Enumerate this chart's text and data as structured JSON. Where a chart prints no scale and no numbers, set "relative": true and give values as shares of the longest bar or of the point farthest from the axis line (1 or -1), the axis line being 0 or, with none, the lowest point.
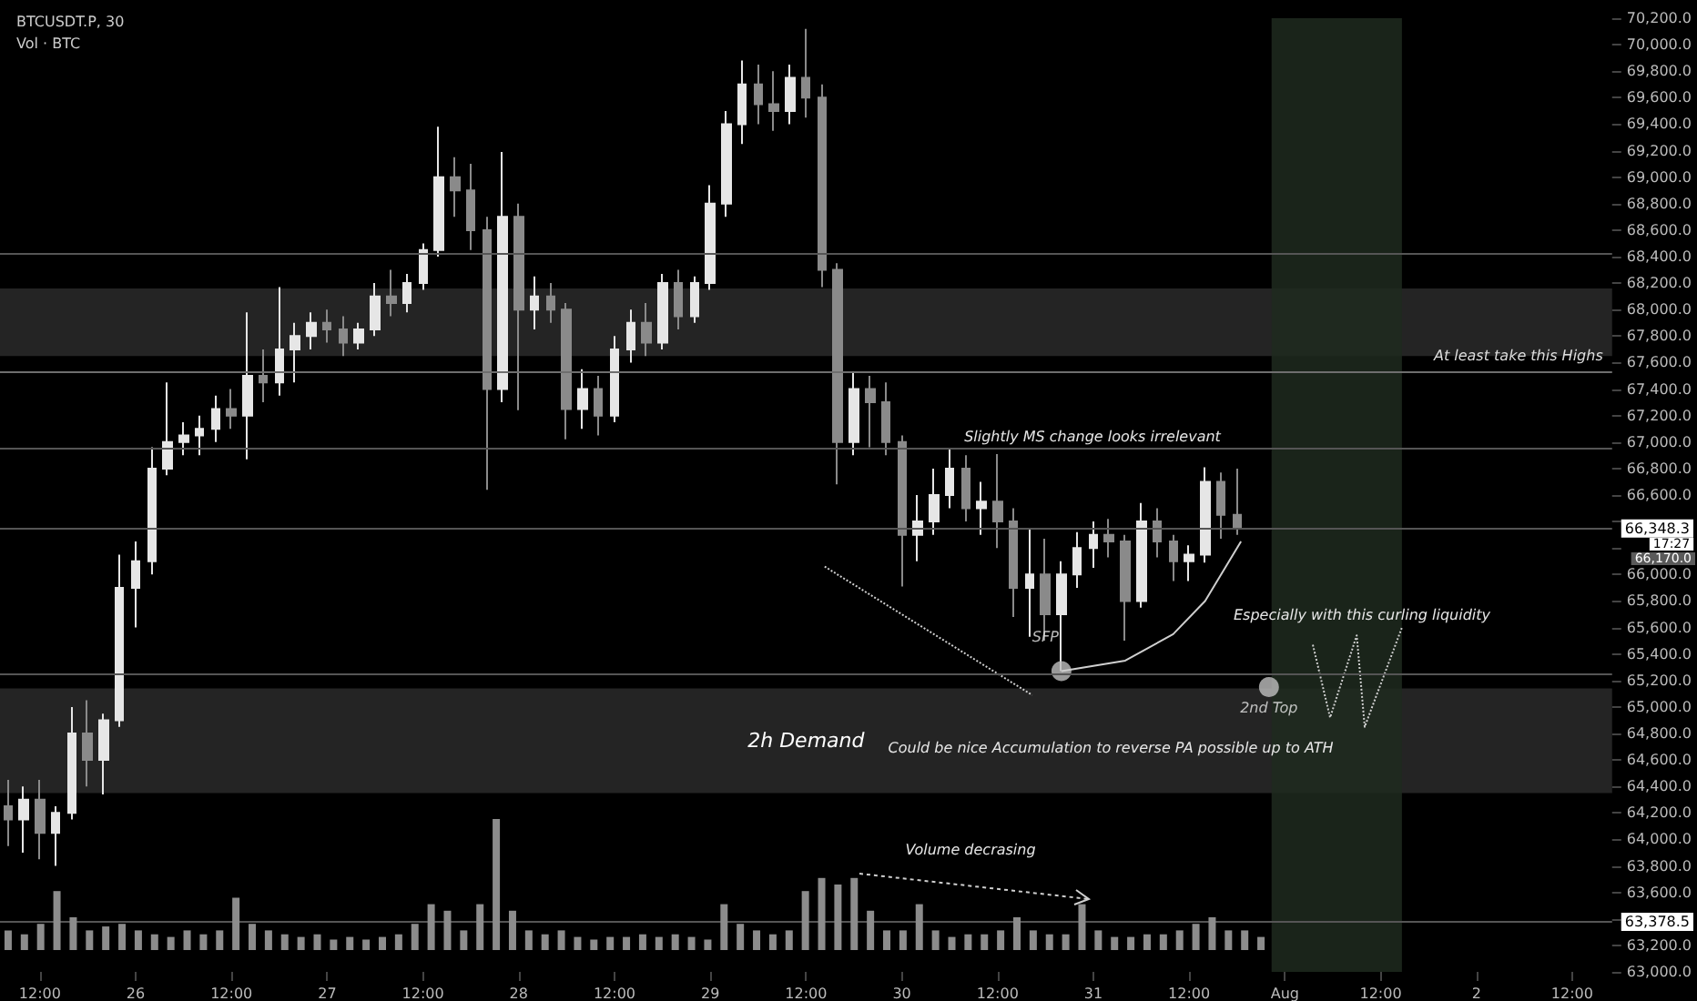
{
  "chart_data": [
    {
      "type": "candlestick",
      "title": "BTCUSDT.P, 30",
      "xlim": [
        "--07-25T07:00",
        "--08-02T17:00"
      ],
      "xticks": [
        {
          "value": "--07-25T12:00",
          "label": "12:00"
        },
        {
          "value": "--07-26T00:00",
          "label": "26"
        },
        {
          "value": "--07-26T12:00",
          "label": "12:00"
        },
        {
          "value": "--07-27T00:00",
          "label": "27"
        },
        {
          "value": "--07-27T12:00",
          "label": "12:00"
        },
        {
          "value": "--07-28T00:00",
          "label": "28"
        },
        {
          "value": "--07-28T12:00",
          "label": "12:00"
        },
        {
          "value": "--07-29T00:00",
          "label": "29"
        },
        {
          "value": "--07-29T12:00",
          "label": "12:00"
        },
        {
          "value": "--07-30T00:00",
          "label": "30"
        },
        {
          "value": "--07-30T12:00",
          "label": "12:00"
        },
        {
          "value": "--07-31T00:00",
          "label": "31"
        },
        {
          "value": "--07-31T12:00",
          "label": "12:00"
        },
        {
          "value": "--08-01T00:00",
          "label": "Aug"
        },
        {
          "value": "--08-01T12:00",
          "label": "12:00"
        },
        {
          "value": "--08-02T00:00",
          "label": "2"
        },
        {
          "value": "--08-02T12:00",
          "label": "12:00"
        }
      ],
      "ylim": [
        63000,
        70200
      ],
      "yticks": [
        {
          "value": 63000,
          "label": "63,000.0"
        },
        {
          "value": 63200,
          "label": "63,200.0"
        },
        {
          "value": 63400,
          "label": null
        },
        {
          "value": 63600,
          "label": "63,600.0"
        },
        {
          "value": 63800,
          "label": "63,800.0"
        },
        {
          "value": 64000,
          "label": "64,000.0"
        },
        {
          "value": 64200,
          "label": "64,200.0"
        },
        {
          "value": 64400,
          "label": "64,400.0"
        },
        {
          "value": 64600,
          "label": "64,600.0"
        },
        {
          "value": 64800,
          "label": "64,800.0"
        },
        {
          "value": 65000,
          "label": "65,000.0"
        },
        {
          "value": 65200,
          "label": "65,200.0"
        },
        {
          "value": 65400,
          "label": "65,400.0"
        },
        {
          "value": 65600,
          "label": "65,600.0"
        },
        {
          "value": 65800,
          "label": "65,800.0"
        },
        {
          "value": 66000,
          "label": "66,000.0"
        },
        {
          "value": 66200,
          "label": null
        },
        {
          "value": 66400,
          "label": null
        },
        {
          "value": 66600,
          "label": "66,600.0"
        },
        {
          "value": 66800,
          "label": "66,800.0"
        },
        {
          "value": 67000,
          "label": "67,000.0"
        },
        {
          "value": 67200,
          "label": "67,200.0"
        },
        {
          "value": 67400,
          "label": "67,400.0"
        },
        {
          "value": 67600,
          "label": "67,600.0"
        },
        {
          "value": 67800,
          "label": "67,800.0"
        },
        {
          "value": 68000,
          "label": "68,000.0"
        },
        {
          "value": 68200,
          "label": "68,200.0"
        },
        {
          "value": 68400,
          "label": "68,400.0"
        },
        {
          "value": 68600,
          "label": "68,600.0"
        },
        {
          "value": 68800,
          "label": "68,800.0"
        },
        {
          "value": 69000,
          "label": "69,000.0"
        },
        {
          "value": 69200,
          "label": "69,200.0"
        },
        {
          "value": 69400,
          "label": "69,400.0"
        },
        {
          "value": 69600,
          "label": "69,600.0"
        },
        {
          "value": 69800,
          "label": "69,800.0"
        },
        {
          "value": 70000,
          "label": "70,000.0"
        },
        {
          "value": 70200,
          "label": "70,200.0"
        }
      ],
      "series": [
        {
          "colors": [
            "#8a8a8a",
            "#e6e6e6",
            "#8a8a8a",
            "#e6e6e6",
            "#e6e6e6",
            "#8a8a8a",
            "#e6e6e6",
            "#e6e6e6",
            "#e6e6e6",
            "#e6e6e6",
            "#e6e6e6",
            "#e6e6e6",
            "#e6e6e6",
            "#e6e6e6",
            "#8a8a8a",
            "#e6e6e6",
            "#8a8a8a",
            "#e6e6e6",
            "#e6e6e6",
            "#e6e6e6",
            "#8a8a8a",
            "#8a8a8a",
            "#e6e6e6",
            "#e6e6e6",
            "#8a8a8a",
            "#e6e6e6",
            "#e6e6e6",
            "#e6e6e6",
            "#8a8a8a",
            "#8a8a8a",
            "#8a8a8a",
            "#e6e6e6",
            "#8a8a8a",
            "#e6e6e6",
            "#8a8a8a",
            "#8a8a8a",
            "#e6e6e6",
            "#8a8a8a",
            "#e6e6e6",
            "#e6e6e6",
            "#8a8a8a",
            "#e6e6e6",
            "#8a8a8a",
            "#e6e6e6",
            "#e6e6e6",
            "#e6e6e6",
            "#e6e6e6",
            "#8a8a8a",
            "#8a8a8a",
            "#e6e6e6",
            "#8a8a8a",
            "#8a8a8a",
            "#8a8a8a",
            "#e6e6e6",
            "#8a8a8a",
            "#8a8a8a",
            "#8a8a8a",
            "#e6e6e6",
            "#e6e6e6",
            "#e6e6e6",
            "#8a8a8a",
            "#e6e6e6",
            "#8a8a8a",
            "#8a8a8a",
            "#e6e6e6",
            "#8a8a8a",
            "#e6e6e6",
            "#e6e6e6",
            "#e6e6e6",
            "#8a8a8a",
            "#8a8a8a",
            "#e6e6e6",
            "#8a8a8a",
            "#8a8a8a",
            "#e6e6e6",
            "#e6e6e6",
            "#8a8a8a",
            "#8a8a8a"
          ],
          "x": [
            "--07-25T08:00",
            "--07-25T10:00",
            "--07-25T12:00",
            "--07-25T14:00",
            "--07-25T16:00",
            "--07-25T18:00",
            "--07-25T20:00",
            "--07-25T22:00",
            "--07-26T00:00",
            "--07-26T02:00",
            "--07-26T04:00",
            "--07-26T06:00",
            "--07-26T08:00",
            "--07-26T10:00",
            "--07-26T12:00",
            "--07-26T14:00",
            "--07-26T16:00",
            "--07-26T18:00",
            "--07-26T20:00",
            "--07-26T22:00",
            "--07-27T00:00",
            "--07-27T02:00",
            "--07-27T04:00",
            "--07-27T06:00",
            "--07-27T08:00",
            "--07-27T10:00",
            "--07-27T12:00",
            "--07-27T14:00",
            "--07-27T16:00",
            "--07-27T18:00",
            "--07-27T20:00",
            "--07-27T22:00",
            "--07-28T00:00",
            "--07-28T02:00",
            "--07-28T04:00",
            "--07-28T06:00",
            "--07-28T08:00",
            "--07-28T10:00",
            "--07-28T12:00",
            "--07-28T14:00",
            "--07-28T16:00",
            "--07-28T18:00",
            "--07-28T20:00",
            "--07-28T22:00",
            "--07-29T00:00",
            "--07-29T02:00",
            "--07-29T04:00",
            "--07-29T06:00",
            "--07-29T08:00",
            "--07-29T10:00",
            "--07-29T12:00",
            "--07-29T14:00",
            "--07-29T16:00",
            "--07-29T18:00",
            "--07-29T20:00",
            "--07-29T22:00",
            "--07-30T00:00",
            "--07-30T02:00",
            "--07-30T04:00",
            "--07-30T06:00",
            "--07-30T08:00",
            "--07-30T10:00",
            "--07-30T12:00",
            "--07-30T14:00",
            "--07-30T16:00",
            "--07-30T18:00",
            "--07-30T20:00",
            "--07-30T22:00",
            "--07-31T00:00",
            "--07-31T02:00",
            "--07-31T04:00",
            "--07-31T06:00",
            "--07-31T08:00",
            "--07-31T10:00",
            "--07-31T12:00",
            "--07-31T14:00",
            "--07-31T16:00",
            "--07-31T18:00"
          ],
          "ohlc": [
            [
              64250,
              64450,
              63950,
              64150
            ],
            [
              64150,
              64400,
              63900,
              64300
            ],
            [
              64300,
              64450,
              63850,
              64050
            ],
            [
              64050,
              64250,
              63800,
              64200
            ],
            [
              64200,
              65000,
              64150,
              64800
            ],
            [
              64800,
              65050,
              64400,
              64600
            ],
            [
              64600,
              64950,
              64340,
              64900
            ],
            [
              64900,
              66150,
              64850,
              65900
            ],
            [
              65900,
              66250,
              65600,
              66100
            ],
            [
              66100,
              66960,
              66000,
              66800
            ],
            [
              66800,
              67450,
              66750,
              67000
            ],
            [
              67000,
              67150,
              66900,
              67050
            ],
            [
              67050,
              67200,
              66900,
              67100
            ],
            [
              67100,
              67350,
              67000,
              67250
            ],
            [
              67250,
              67400,
              67100,
              67200
            ],
            [
              67200,
              67980,
              66870,
              67500
            ],
            [
              67500,
              67700,
              67300,
              67450
            ],
            [
              67450,
              68170,
              67350,
              67700
            ],
            [
              67700,
              67900,
              67450,
              67800
            ],
            [
              67800,
              67980,
              67700,
              67900
            ],
            [
              67900,
              68000,
              67750,
              67850
            ],
            [
              67850,
              67950,
              67650,
              67750
            ],
            [
              67750,
              67900,
              67700,
              67850
            ],
            [
              67850,
              68200,
              67800,
              68100
            ],
            [
              68100,
              68300,
              67950,
              68050
            ],
            [
              68050,
              68270,
              67980,
              68200
            ],
            [
              68200,
              68500,
              68150,
              68450
            ],
            [
              68450,
              69380,
              68400,
              69000
            ],
            [
              69000,
              69150,
              68700,
              68900
            ],
            [
              68900,
              69100,
              68450,
              68600
            ],
            [
              68600,
              68700,
              66640,
              67400
            ],
            [
              67400,
              69190,
              67300,
              68700
            ],
            [
              68700,
              68800,
              67240,
              68000
            ],
            [
              68000,
              68250,
              67850,
              68100
            ],
            [
              68100,
              68200,
              67900,
              68000
            ],
            [
              68000,
              68050,
              67020,
              67250
            ],
            [
              67250,
              67550,
              67100,
              67400
            ],
            [
              67400,
              67500,
              67050,
              67200
            ],
            [
              67200,
              67800,
              67150,
              67700
            ],
            [
              67700,
              68000,
              67600,
              67900
            ],
            [
              67900,
              68050,
              67650,
              67750
            ],
            [
              67750,
              68270,
              67700,
              68200
            ],
            [
              68200,
              68300,
              67850,
              67950
            ],
            [
              67950,
              68250,
              67900,
              68200
            ],
            [
              68200,
              68940,
              68150,
              68800
            ],
            [
              68800,
              69500,
              68700,
              69400
            ],
            [
              69400,
              69880,
              69250,
              69700
            ],
            [
              69700,
              69850,
              69400,
              69550
            ],
            [
              69550,
              69800,
              69350,
              69500
            ],
            [
              69500,
              69850,
              69400,
              69750
            ],
            [
              69750,
              70120,
              69450,
              69600
            ],
            [
              69600,
              69700,
              68170,
              68300
            ],
            [
              68300,
              68350,
              66680,
              67000
            ],
            [
              67000,
              67530,
              66900,
              67400
            ],
            [
              67400,
              67500,
              66960,
              67300
            ],
            [
              67300,
              67450,
              66900,
              67000
            ],
            [
              67000,
              67050,
              65910,
              66300
            ],
            [
              66300,
              66600,
              66100,
              66400
            ],
            [
              66400,
              66800,
              66300,
              66600
            ],
            [
              66600,
              66950,
              66500,
              66800
            ],
            [
              66800,
              66900,
              66400,
              66500
            ],
            [
              66500,
              66700,
              66300,
              66550
            ],
            [
              66550,
              66910,
              66200,
              66400
            ],
            [
              66400,
              66500,
              65680,
              65900
            ],
            [
              65900,
              66350,
              65530,
              66000
            ],
            [
              66000,
              66270,
              65500,
              65700
            ],
            [
              65700,
              66100,
              65270,
              66000
            ],
            [
              66000,
              66320,
              65900,
              66200
            ],
            [
              66200,
              66400,
              66050,
              66300
            ],
            [
              66300,
              66420,
              66130,
              66250
            ],
            [
              66250,
              66300,
              65500,
              65800
            ],
            [
              65800,
              66540,
              65750,
              66400
            ],
            [
              66400,
              66500,
              66130,
              66250
            ],
            [
              66250,
              66300,
              65950,
              66100
            ],
            [
              66100,
              66220,
              65950,
              66150
            ],
            [
              66150,
              66810,
              66090,
              66700
            ],
            [
              66700,
              66770,
              66270,
              66450
            ],
            [
              66450,
              66800,
              66300,
              66350
            ]
          ]
        },
        {
          "type": "scatter",
          "color": "#bfbfbf",
          "marker": "circle",
          "x": [
            "--07-30T20:00",
            "--07-31T22:00"
          ],
          "values": [
            65270,
            65150
          ]
        },
        {
          "type": "line",
          "color": "#cfcfcf",
          "line_style": "dotted",
          "x": [
            "--07-29T14:20",
            "--07-30T16:20"
          ],
          "values": [
            66060,
            65090
          ]
        },
        {
          "type": "line",
          "color": "#cfcfcf",
          "line_style": "solid",
          "x": [
            "--07-30T20:00",
            "--07-31T04:00",
            "--07-31T10:00",
            "--07-31T14:00",
            "--07-31T18:30"
          ],
          "values": [
            65270,
            65350,
            65550,
            65800,
            66250
          ]
        },
        {
          "type": "line",
          "color": "#cfcfcf",
          "line_style": "dotted",
          "x": [
            "--08-01T03:30",
            "--08-01T05:40",
            "--08-01T09:00",
            "--08-01T10:00",
            "--08-01T14:40"
          ],
          "values": [
            65470,
            64920,
            65540,
            64850,
            65600
          ]
        }
      ],
      "ref_lines": [
        {
          "axis": "y",
          "value": 67530,
          "label": "At least take this Highs",
          "color": "#6e6e6e"
        },
        {
          "axis": "y",
          "value": 68420,
          "color": "#555555"
        },
        {
          "axis": "y",
          "value": 66950,
          "color": "#555555"
        },
        {
          "axis": "y",
          "value": 65250,
          "color": "#555555"
        },
        {
          "axis": "y",
          "value": 66348.3,
          "label": "66,348.3",
          "color": "#555555"
        },
        {
          "axis": "y",
          "value": 63378.5,
          "label": "63,378.5",
          "color": "#555555"
        }
      ],
      "bands": [
        {
          "axis": "y",
          "from": 64350,
          "to": 65140,
          "label": "2h Demand",
          "color": "#2a2a2a"
        },
        {
          "axis": "y",
          "from": 67650,
          "to": 68160,
          "color": "#2a2a2a"
        },
        {
          "axis": "x",
          "from": "--07-31T22:20",
          "to": "--08-01T14:40",
          "color": "#1f2a1f"
        }
      ],
      "annotations": [
        "Slightly MS change looks irrelevant",
        {
          "text": "SFP",
          "x": "--07-30T18:00",
          "y": 65530
        },
        "Especially with this curling liquidity",
        {
          "text": "2nd Top",
          "x": "--07-31T22:00",
          "y": 64990
        },
        "Could be nice Accumulation to reverse PA possible up to ATH",
        "17:27",
        "66,170.0"
      ],
      "grid": false
    },
    {
      "type": "bar",
      "title": "Vol · BTC",
      "relative": true,
      "color": "#8c8c8c",
      "categories": [
        null,
        null,
        null,
        null,
        null,
        null,
        null,
        null,
        null,
        null,
        null,
        null,
        null,
        null,
        null,
        null,
        null,
        null,
        null,
        null,
        null,
        null,
        null,
        null,
        null,
        null,
        null,
        null,
        null,
        null,
        null,
        null,
        null,
        null,
        null,
        null,
        null,
        null,
        null,
        null,
        null,
        null,
        null,
        null,
        null,
        null,
        null,
        null,
        null,
        null,
        null,
        null,
        null,
        null,
        null,
        null,
        null,
        null,
        null,
        null,
        null,
        null,
        null,
        null,
        null,
        null,
        null,
        null,
        null,
        null,
        null,
        null,
        null,
        null,
        null,
        null,
        null,
        null
      ],
      "values": [
        0.15,
        0.12,
        0.2,
        0.45,
        0.25,
        0.15,
        0.18,
        0.2,
        0.15,
        0.12,
        0.1,
        0.15,
        0.12,
        0.15,
        0.4,
        0.2,
        0.15,
        0.12,
        0.1,
        0.12,
        0.08,
        0.1,
        0.08,
        0.1,
        0.12,
        0.2,
        0.35,
        0.3,
        0.15,
        0.35,
        1,
        0.3,
        0.15,
        0.12,
        0.15,
        0.1,
        0.08,
        0.1,
        0.1,
        0.12,
        0.1,
        0.12,
        0.1,
        0.08,
        0.35,
        0.2,
        0.15,
        0.12,
        0.15,
        0.45,
        0.55,
        0.5,
        0.55,
        0.3,
        0.15,
        0.15,
        0.35,
        0.15,
        0.1,
        0.12,
        0.12,
        0.15,
        0.25,
        0.15,
        0.12,
        0.12,
        0.35,
        0.15,
        0.1,
        0.1,
        0.12,
        0.12,
        0.15,
        0.2,
        0.25,
        0.15,
        0.15,
        0.1
      ],
      "annotations": [
        "Volume decrasing"
      ],
      "grid": false
    }
  ]
}
